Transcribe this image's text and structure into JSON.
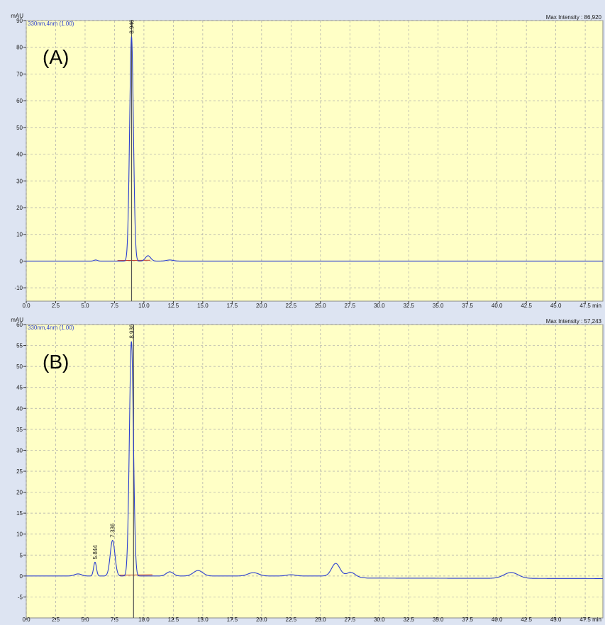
{
  "colors": {
    "page_bg": "#dde4f2",
    "plot_bg": "#ffffc6",
    "grid": "#aaaaaa",
    "trace": "#2b3fd0",
    "baseline": "#c0392b",
    "marker": "#555555",
    "text": "#1a1a1a",
    "channel_text": "#2b3fd0"
  },
  "chart_data": [
    {
      "type": "line",
      "panel_label": "(A)",
      "channel_label": "330nm,4nm (1.00)",
      "max_intensity_text": "Max Intensity : 86,920",
      "ylabel": "mAU",
      "xlabel": "min",
      "xlim": [
        0,
        49
      ],
      "ylim": [
        -15,
        90
      ],
      "x_ticks": [
        "0.0",
        "2.5",
        "5.0",
        "7.5",
        "10.0",
        "12.5",
        "15.0",
        "17.5",
        "20.0",
        "22.5",
        "25.0",
        "27.5",
        "30.0",
        "32.5",
        "35.0",
        "37.5",
        "40.0",
        "42.5",
        "45.0",
        "47.5"
      ],
      "y_ticks": [
        "-10",
        "0",
        "10",
        "20",
        "30",
        "40",
        "50",
        "60",
        "70",
        "80",
        "90"
      ],
      "grid": true,
      "series": [
        {
          "baseline": 0,
          "peaks": [
            {
              "rt": 5.9,
              "height": 0.4,
              "width": 0.15
            },
            {
              "rt": 8.946,
              "height": 84.0,
              "width": 0.16
            },
            {
              "rt": 10.35,
              "height": 2.0,
              "width": 0.22
            },
            {
              "rt": 12.2,
              "height": 0.4,
              "width": 0.3
            }
          ]
        }
      ],
      "marker_rt": 8.95,
      "peak_labels": [
        {
          "rt": 8.946,
          "text": "8.946"
        }
      ]
    },
    {
      "type": "line",
      "panel_label": "(B)",
      "channel_label": "330nm,4nm (1.00)",
      "max_intensity_text": "Max Intensity : 57,243",
      "ylabel": "mAU",
      "xlabel": "min",
      "xlim": [
        0,
        49
      ],
      "ylim": [
        -10,
        60
      ],
      "x_ticks": [
        "0.0",
        "2.5",
        "5.0",
        "7.5",
        "10.0",
        "12.5",
        "15.0",
        "17.5",
        "20.0",
        "22.5",
        "25.0",
        "27.5",
        "30.0",
        "32.5",
        "35.0",
        "37.5",
        "40.0",
        "42.5",
        "45.0",
        "47.5"
      ],
      "y_ticks": [
        "-5",
        "0",
        "5",
        "10",
        "15",
        "20",
        "25",
        "30",
        "35",
        "40",
        "45",
        "50",
        "55",
        "60"
      ],
      "grid": true,
      "series": [
        {
          "baseline": 0,
          "drift": [
            {
              "x": 0,
              "y": 0.0
            },
            {
              "x": 27,
              "y": 0.0
            },
            {
              "x": 29,
              "y": -0.5
            },
            {
              "x": 49,
              "y": -0.6
            }
          ],
          "peaks": [
            {
              "rt": 4.4,
              "height": 0.5,
              "width": 0.3
            },
            {
              "rt": 5.844,
              "height": 3.3,
              "width": 0.12
            },
            {
              "rt": 7.336,
              "height": 8.5,
              "width": 0.2
            },
            {
              "rt": 8.936,
              "height": 56.0,
              "width": 0.17
            },
            {
              "rt": 12.2,
              "height": 1.0,
              "width": 0.3
            },
            {
              "rt": 14.6,
              "height": 1.3,
              "width": 0.4
            },
            {
              "rt": 19.3,
              "height": 0.8,
              "width": 0.45
            },
            {
              "rt": 22.5,
              "height": 0.3,
              "width": 0.4
            },
            {
              "rt": 26.3,
              "height": 3.0,
              "width": 0.35
            },
            {
              "rt": 27.6,
              "height": 1.0,
              "width": 0.35
            },
            {
              "rt": 41.2,
              "height": 1.4,
              "width": 0.6
            }
          ]
        }
      ],
      "marker_rt": 9.12,
      "peak_labels": [
        {
          "rt": 5.844,
          "text": "5.844"
        },
        {
          "rt": 7.336,
          "text": "7.336"
        },
        {
          "rt": 8.936,
          "text": "8.936"
        }
      ]
    }
  ]
}
